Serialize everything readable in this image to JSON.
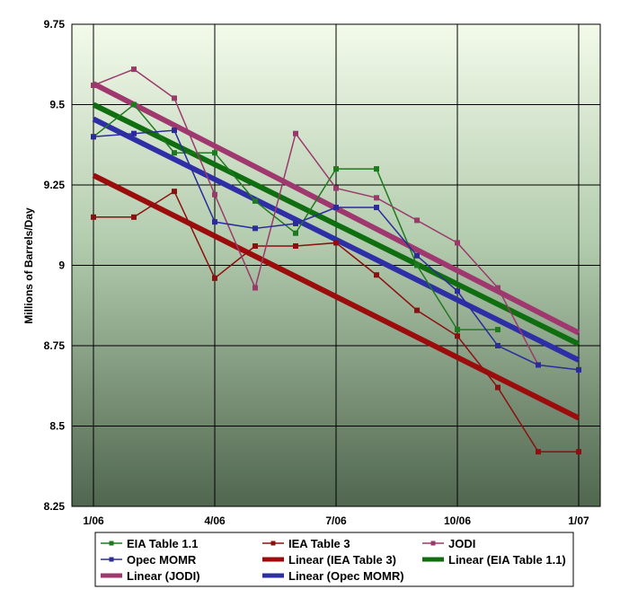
{
  "chart_data": {
    "type": "line",
    "title": "",
    "xlabel": "",
    "ylabel": "Millions of Barrels/Day",
    "ylim": [
      8.25,
      9.75
    ],
    "xlim": [
      0,
      12
    ],
    "grid": true,
    "x_tick_values": [
      0,
      3,
      6,
      9,
      12
    ],
    "x_tick_labels": [
      "1/06",
      "4/06",
      "7/06",
      "10/06",
      "1/07"
    ],
    "y_ticks": [
      8.25,
      8.5,
      8.75,
      9,
      9.25,
      9.5,
      9.75
    ],
    "y_tick_labels": [
      "8.25",
      "8.5",
      "8.75",
      "9",
      "9.25",
      "9.5",
      "9.75"
    ],
    "x": [
      0,
      1,
      2,
      3,
      4,
      5,
      6,
      7,
      8,
      9,
      10,
      11,
      12
    ],
    "series": [
      {
        "name": "EIA Table 1.1",
        "color": "#1f7a1f",
        "marker": true,
        "values": [
          9.4,
          9.5,
          9.35,
          9.35,
          9.2,
          9.1,
          9.3,
          9.3,
          9.0,
          8.8,
          8.8,
          null,
          null
        ]
      },
      {
        "name": "IEA Table 3",
        "color": "#8b1010",
        "marker": true,
        "values": [
          9.15,
          9.15,
          9.23,
          8.96,
          9.06,
          9.06,
          9.07,
          8.97,
          8.86,
          8.78,
          8.62,
          8.42,
          8.42
        ]
      },
      {
        "name": "JODI",
        "color": "#9a3a6b",
        "marker": true,
        "values": [
          9.56,
          9.61,
          9.52,
          9.22,
          8.93,
          9.41,
          9.24,
          9.21,
          9.14,
          9.07,
          8.93,
          8.69,
          null
        ]
      },
      {
        "name": "Opec MOMR",
        "color": "#2b2b9a",
        "marker": true,
        "values": [
          9.4,
          9.41,
          9.42,
          9.135,
          9.115,
          9.13,
          9.18,
          9.18,
          9.03,
          8.92,
          8.75,
          8.69,
          8.675
        ]
      }
    ],
    "trendlines": [
      {
        "name": "Linear (IEA Table 3)",
        "color": "#9b0d0d",
        "start": 9.28,
        "end": 8.525
      },
      {
        "name": "Linear (EIA Table 1.1)",
        "color": "#0f6e0f",
        "start": 9.5,
        "end": 8.755
      },
      {
        "name": "Linear (JODI)",
        "color": "#a03870",
        "start": 9.565,
        "end": 8.79
      },
      {
        "name": "Linear (Opec MOMR)",
        "color": "#2e2ea6",
        "start": 9.455,
        "end": 8.705
      }
    ],
    "legend": {
      "placement": "bottom",
      "entries": [
        {
          "label": "EIA Table 1.1",
          "color": "#1f7a1f",
          "style": "marker"
        },
        {
          "label": "IEA Table 3",
          "color": "#8b1010",
          "style": "marker"
        },
        {
          "label": "JODI",
          "color": "#9a3a6b",
          "style": "marker"
        },
        {
          "label": "Opec MOMR",
          "color": "#2b2b9a",
          "style": "marker"
        },
        {
          "label": "Linear (IEA Table 3)",
          "color": "#9b0d0d",
          "style": "thick"
        },
        {
          "label": "Linear (EIA Table 1.1)",
          "color": "#0f6e0f",
          "style": "thick"
        },
        {
          "label": "Linear (JODI)",
          "color": "#a03870",
          "style": "thick"
        },
        {
          "label": "Linear (Opec MOMR)",
          "color": "#2e2ea6",
          "style": "thick"
        }
      ]
    }
  }
}
